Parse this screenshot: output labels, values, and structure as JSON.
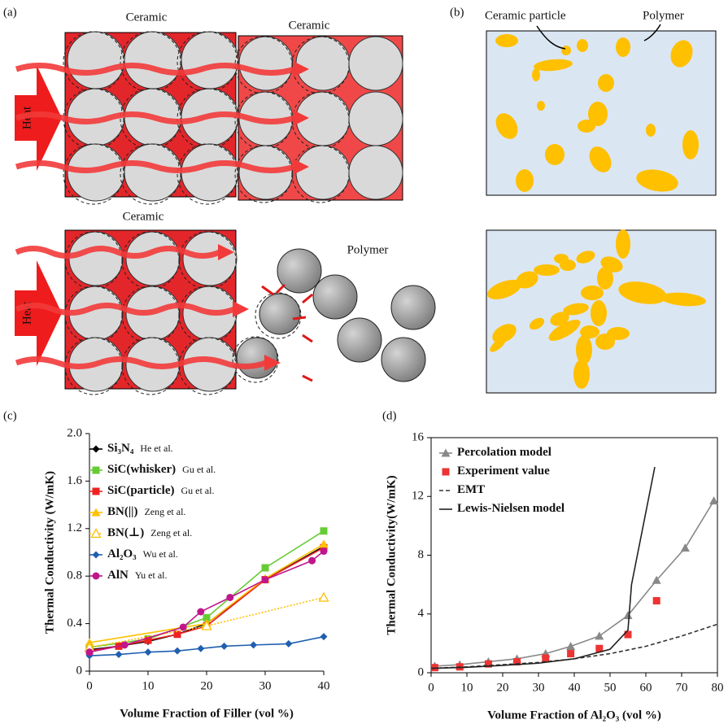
{
  "panel_labels": [
    "(a)",
    "(b)",
    "(c)",
    "(d)"
  ],
  "diagram_a": {
    "labels": [
      "Ceramic",
      "Ceramic",
      "Ceramic",
      "Polymer"
    ],
    "heat": [
      "Heat",
      "Heat"
    ]
  },
  "diagram_b": {
    "labels": [
      "Ceramic particle",
      "Polymer"
    ]
  },
  "chart_data": [
    {
      "type": "line",
      "xlabel": "Volume Fraction of Filler (vol %)",
      "ylabel": "Thermal Conductivity (W/mK)",
      "xlim": [
        0,
        40
      ],
      "xticks": [
        0,
        10,
        20,
        30,
        40
      ],
      "ylim": [
        0,
        2
      ],
      "yticks": [
        0,
        0.4,
        0.8,
        1.2,
        1.6,
        {
          "value": 2,
          "label": "2.0"
        }
      ],
      "series": [
        {
          "name": "Si₃N₄",
          "ref": "He et al.",
          "color": "#000000",
          "marker": "diamond",
          "dash": "solid",
          "x": [
            0,
            5,
            10,
            15,
            20,
            30,
            40
          ],
          "values": [
            0.18,
            0.21,
            0.25,
            0.31,
            0.4,
            0.77,
            1.05
          ]
        },
        {
          "name": "SiC(whisker)",
          "ref": "Gu et al.",
          "color": "#66cc33",
          "marker": "square",
          "dash": "solid",
          "x": [
            0,
            10,
            20,
            30,
            40
          ],
          "values": [
            0.2,
            0.27,
            0.45,
            0.87,
            1.18
          ]
        },
        {
          "name": "SiC(particle)",
          "ref": "Gu et al.",
          "color": "#ee2222",
          "marker": "square",
          "dash": "solid",
          "x": [
            0,
            5,
            10,
            15,
            20,
            30,
            40
          ],
          "values": [
            0.17,
            0.21,
            0.26,
            0.31,
            0.38,
            0.77,
            1.04
          ]
        },
        {
          "name": "BN(||)",
          "ref": "Zeng et al.",
          "color": "#ffc000",
          "marker": "triangle",
          "dash": "solid",
          "x": [
            0,
            20,
            30,
            40
          ],
          "values": [
            0.24,
            0.4,
            0.78,
            1.07
          ]
        },
        {
          "name": "BN(⊥)",
          "ref": "Zeng et al.",
          "color": "#ffc000",
          "marker": "open-triangle",
          "dash": "dotted",
          "x": [
            0,
            20,
            40
          ],
          "values": [
            0.2,
            0.38,
            0.62
          ]
        },
        {
          "name": "Al₂O₃",
          "ref": "Wu et al.",
          "color": "#1f5fb0",
          "marker": "diamond",
          "dash": "solid",
          "x": [
            0,
            5,
            10,
            15,
            19,
            23,
            28,
            34,
            40
          ],
          "values": [
            0.13,
            0.14,
            0.16,
            0.17,
            0.19,
            0.21,
            0.22,
            0.23,
            0.29
          ]
        },
        {
          "name": "AlN",
          "ref": "Yu et al.",
          "color": "#c0168c",
          "marker": "circle",
          "dash": "solid",
          "x": [
            0,
            6,
            16,
            19,
            24,
            30,
            38,
            40
          ],
          "values": [
            0.16,
            0.22,
            0.37,
            0.5,
            0.62,
            0.77,
            0.93,
            1.01
          ]
        }
      ]
    },
    {
      "type": "line",
      "xlabel": "Volume Fraction of Al₂O₃ (vol %)",
      "ylabel": "Thermal Conductivity(W/mK)",
      "xlim": [
        0,
        80
      ],
      "xticks": [
        0,
        10,
        20,
        30,
        40,
        50,
        60,
        70,
        80
      ],
      "ylim": [
        0,
        16
      ],
      "yticks": [
        0,
        4,
        8,
        12,
        16
      ],
      "series": [
        {
          "name": "Percolation model",
          "color": "#888888",
          "marker": "triangle",
          "dash": "solid",
          "x": [
            1,
            8,
            16,
            24,
            32,
            39,
            47,
            55,
            63,
            71,
            79
          ],
          "values": [
            0.45,
            0.55,
            0.75,
            0.95,
            1.3,
            1.8,
            2.5,
            3.9,
            6.3,
            8.5,
            11.7
          ]
        },
        {
          "name": "Experiment value",
          "color": "#ee3333",
          "marker": "square",
          "dash": "none",
          "x": [
            1,
            8,
            16,
            24,
            32,
            39,
            47,
            55,
            63
          ],
          "values": [
            0.35,
            0.4,
            0.6,
            0.75,
            1.0,
            1.3,
            1.65,
            2.6,
            4.9
          ]
        },
        {
          "name": "EMT",
          "color": "#333333",
          "marker": "none",
          "dash": "dashed",
          "x": [
            0,
            10,
            20,
            30,
            40,
            50,
            60,
            70,
            80
          ],
          "values": [
            0.3,
            0.4,
            0.55,
            0.7,
            0.95,
            1.3,
            1.8,
            2.5,
            3.3
          ]
        },
        {
          "name": "Lewis-Nielsen model",
          "color": "#222222",
          "marker": "none",
          "dash": "solid",
          "x": [
            0,
            10,
            20,
            30,
            40,
            50,
            55,
            56,
            62.5
          ],
          "values": [
            0.3,
            0.37,
            0.5,
            0.65,
            0.95,
            1.6,
            2.9,
            6,
            14
          ]
        }
      ]
    }
  ]
}
